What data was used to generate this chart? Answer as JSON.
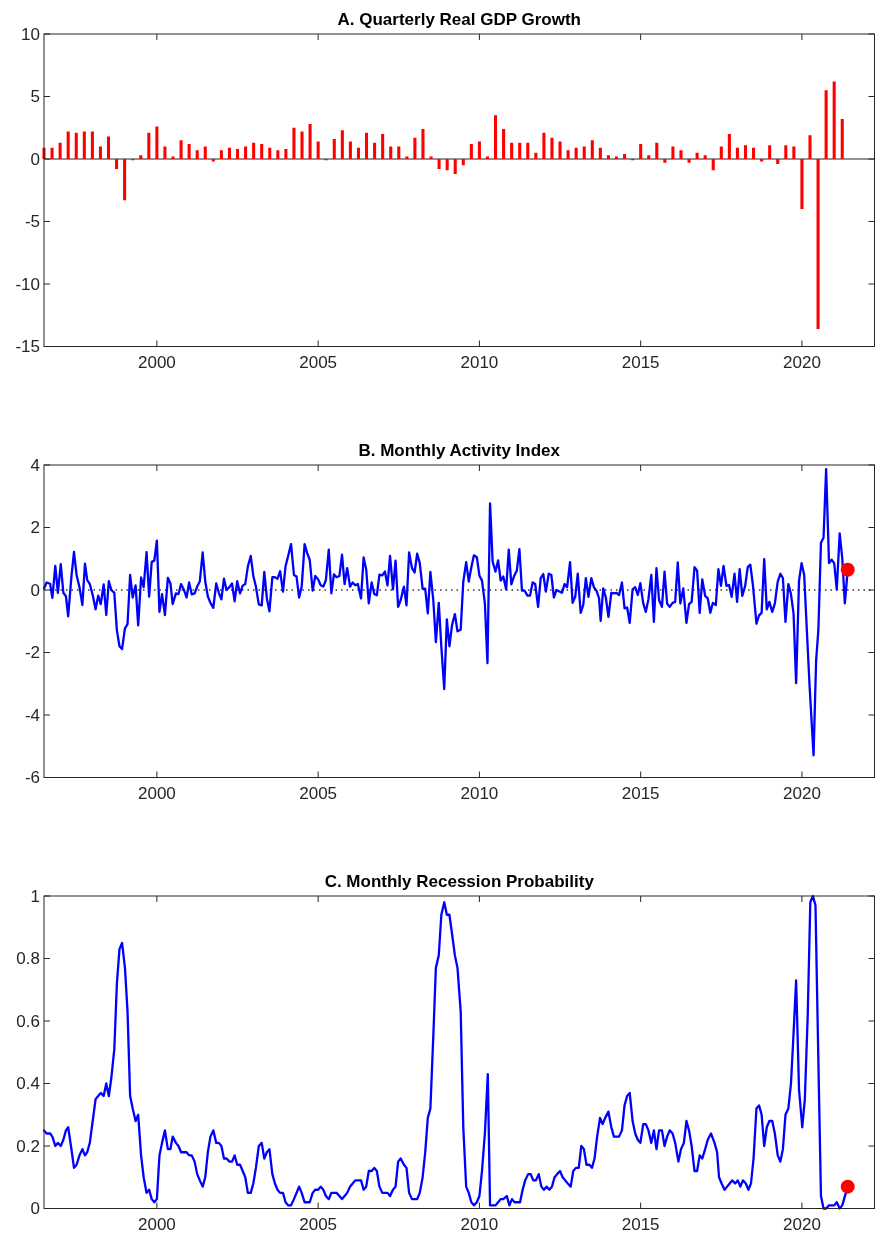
{
  "chart_data": [
    {
      "type": "bar",
      "title": "A. Quarterly Real GDP Growth",
      "xlim": [
        1996.5,
        2022.25
      ],
      "xticks": [
        2000,
        2005,
        2010,
        2015,
        2020
      ],
      "ylim": [
        -15,
        10
      ],
      "yticks": [
        -15,
        -10,
        -5,
        0,
        5,
        10
      ],
      "color": "#ff0000",
      "x": [
        1996.5,
        1996.75,
        1997,
        1997.25,
        1997.5,
        1997.75,
        1998,
        1998.25,
        1998.5,
        1998.75,
        1999,
        1999.25,
        1999.5,
        1999.75,
        2000,
        2000.25,
        2000.5,
        2000.75,
        2001,
        2001.25,
        2001.5,
        2001.75,
        2002,
        2002.25,
        2002.5,
        2002.75,
        2003,
        2003.25,
        2003.5,
        2003.75,
        2004,
        2004.25,
        2004.5,
        2004.75,
        2005,
        2005.25,
        2005.5,
        2005.75,
        2006,
        2006.25,
        2006.5,
        2006.75,
        2007,
        2007.25,
        2007.5,
        2007.75,
        2008,
        2008.25,
        2008.5,
        2008.75,
        2009,
        2009.25,
        2009.5,
        2009.75,
        2010,
        2010.25,
        2010.5,
        2010.75,
        2011,
        2011.25,
        2011.5,
        2011.75,
        2012,
        2012.25,
        2012.5,
        2012.75,
        2013,
        2013.25,
        2013.5,
        2013.75,
        2014,
        2014.25,
        2014.5,
        2014.75,
        2015,
        2015.25,
        2015.5,
        2015.75,
        2016,
        2016.25,
        2016.5,
        2016.75,
        2017,
        2017.25,
        2017.5,
        2017.75,
        2018,
        2018.25,
        2018.5,
        2018.75,
        2019,
        2019.25,
        2019.5,
        2019.75,
        2020,
        2020.25,
        2020.5,
        2020.75,
        2021,
        2021.25
      ],
      "values": [
        0.9,
        0.9,
        1.3,
        2.2,
        2.1,
        2.2,
        2.2,
        1,
        1.8,
        -0.8,
        -3.3,
        -0.1,
        0.3,
        2.1,
        2.6,
        1,
        0.2,
        1.5,
        1.2,
        0.7,
        1,
        -0.2,
        0.7,
        0.9,
        0.8,
        1,
        1.3,
        1.2,
        0.9,
        0.7,
        0.8,
        2.5,
        2.2,
        2.8,
        1.4,
        -0.1,
        1.6,
        2.3,
        1.4,
        0.9,
        2.1,
        1.3,
        2,
        1,
        1,
        0.2,
        1.7,
        2.4,
        0.2,
        -0.8,
        -0.9,
        -1.2,
        -0.5,
        1.2,
        1.4,
        0.2,
        3.5,
        2.4,
        1.3,
        1.3,
        1.3,
        0.5,
        2.1,
        1.7,
        1.4,
        0.7,
        0.9,
        1,
        1.5,
        0.9,
        0.3,
        0.2,
        0.4,
        -0.1,
        1.2,
        0.3,
        1.3,
        -0.3,
        1,
        0.7,
        -0.3,
        0.5,
        0.3,
        -0.9,
        1,
        2,
        0.9,
        1.1,
        0.9,
        -0.2,
        1.1,
        -0.4,
        1.1,
        1,
        -4,
        1.9,
        -13.6,
        5.5,
        6.2,
        3.2
      ]
    },
    {
      "type": "line",
      "title": "B. Monthly Activity Index",
      "xlim": [
        1996.5,
        2022.25
      ],
      "xticks": [
        2000,
        2005,
        2010,
        2015,
        2020
      ],
      "ylim": [
        -6,
        4
      ],
      "yticks": [
        -6,
        -4,
        -2,
        0,
        2,
        4
      ],
      "ref_lines": [
        {
          "axis": "y",
          "value": 0,
          "color": "#333333",
          "line_style": "dotted"
        }
      ],
      "series": [
        {
          "color": "#0000ff",
          "x": [
            1996.5,
            1996.58,
            1996.69,
            1996.76,
            1996.85,
            1996.93,
            1997.02,
            1997.1,
            1997.18,
            1997.25,
            1997.35,
            1997.43,
            1997.51,
            1997.6,
            1997.69,
            1997.77,
            1997.84,
            1997.92,
            1998.01,
            1998.1,
            1998.18,
            1998.26,
            1998.35,
            1998.43,
            1998.51,
            1998.59,
            1998.68,
            1998.76,
            1998.84,
            1998.92,
            1999.01,
            1999.09,
            1999.17,
            1999.25,
            1999.34,
            1999.42,
            1999.51,
            1999.59,
            1999.68,
            1999.76,
            1999.84,
            1999.92,
            2000,
            2000.08,
            2000.16,
            2000.25,
            2000.34,
            2000.42,
            2000.49,
            2000.59,
            2000.67,
            2000.75,
            2000.84,
            2000.92,
            2001,
            2001.08,
            2001.17,
            2001.25,
            2001.33,
            2001.42,
            2001.5,
            2001.58,
            2001.66,
            2001.75,
            2001.84,
            2001.92,
            2002,
            2002.08,
            2002.16,
            2002.25,
            2002.33,
            2002.41,
            2002.49,
            2002.58,
            2002.66,
            2002.74,
            2002.82,
            2002.91,
            2002.99,
            2003.07,
            2003.16,
            2003.25,
            2003.33,
            2003.41,
            2003.49,
            2003.58,
            2003.66,
            2003.74,
            2003.82,
            2003.91,
            2003.99,
            2004.07,
            2004.16,
            2004.25,
            2004.33,
            2004.41,
            2004.49,
            2004.58,
            2004.66,
            2004.74,
            2004.83,
            2004.91,
            2005,
            2005.08,
            2005.16,
            2005.24,
            2005.33,
            2005.41,
            2005.49,
            2005.57,
            2005.66,
            2005.74,
            2005.82,
            2005.9,
            2005.99,
            2006.07,
            2006.15,
            2006.23,
            2006.33,
            2006.41,
            2006.49,
            2006.57,
            2006.66,
            2006.74,
            2006.82,
            2006.9,
            2006.99,
            2007.07,
            2007.15,
            2007.23,
            2007.32,
            2007.4,
            2007.48,
            2007.56,
            2007.66,
            2007.74,
            2007.82,
            2007.91,
            2007.99,
            2008.07,
            2008.15,
            2008.24,
            2008.32,
            2008.4,
            2008.48,
            2008.57,
            2008.65,
            2008.74,
            2008.82,
            2008.91,
            2008.99,
            2009.07,
            2009.15,
            2009.24,
            2009.32,
            2009.42,
            2009.5,
            2009.59,
            2009.67,
            2009.75,
            2009.83,
            2009.92,
            2010,
            2010.08,
            2010.17,
            2010.25,
            2010.33,
            2010.41,
            2010.5,
            2010.58,
            2010.66,
            2010.74,
            2010.83,
            2010.91,
            2010.99,
            2011.07,
            2011.16,
            2011.24,
            2011.32,
            2011.4,
            2011.49,
            2011.57,
            2011.65,
            2011.73,
            2011.82,
            2011.9,
            2011.98,
            2012.06,
            2012.15,
            2012.23,
            2012.31,
            2012.39,
            2012.48,
            2012.56,
            2012.64,
            2012.72,
            2012.81,
            2012.89,
            2012.97,
            2013.05,
            2013.14,
            2013.22,
            2013.3,
            2013.38,
            2013.47,
            2013.55,
            2013.63,
            2013.71,
            2013.76,
            2013.84,
            2013.92,
            2014,
            2014.09,
            2014.17,
            2014.25,
            2014.33,
            2014.42,
            2014.5,
            2014.58,
            2014.66,
            2014.75,
            2014.83,
            2014.91,
            2014.99,
            2015.08,
            2015.16,
            2015.24,
            2015.33,
            2015.41,
            2015.49,
            2015.57,
            2015.66,
            2015.74,
            2015.82,
            2015.9,
            2015.99,
            2016.07,
            2016.15,
            2016.23,
            2016.32,
            2016.42,
            2016.5,
            2016.58,
            2016.67,
            2016.75,
            2016.83,
            2016.91,
            2017,
            2017.08,
            2017.16,
            2017.24,
            2017.33,
            2017.41,
            2017.49,
            2017.57,
            2017.66,
            2017.74,
            2017.82,
            2017.91,
            2017.99,
            2018.07,
            2018.15,
            2018.24,
            2018.32,
            2018.4,
            2018.48,
            2018.59,
            2018.67,
            2018.75,
            2018.83,
            2018.91,
            2018.99,
            2019.08,
            2019.16,
            2019.25,
            2019.33,
            2019.41,
            2019.49,
            2019.58,
            2019.66,
            2019.74,
            2019.82,
            2019.91,
            2019.99,
            2020.07,
            2020.15,
            2020.24,
            2020.36,
            2020.44,
            2020.51,
            2020.59,
            2020.67,
            2020.75,
            2020.84,
            2020.92,
            2021,
            2021.08,
            2021.17,
            2021.25,
            2021.33,
            2021.42
          ],
          "values": [
            0.05,
            0.24,
            0.2,
            -0.25,
            0.77,
            -0.09,
            0.83,
            -0.09,
            -0.2,
            -0.84,
            0.43,
            1.22,
            0.48,
            0.09,
            -0.48,
            0.84,
            0.32,
            0.19,
            -0.16,
            -0.62,
            -0.18,
            -0.45,
            0.18,
            -0.8,
            0.28,
            0,
            -0.09,
            -1.29,
            -1.8,
            -1.89,
            -1.23,
            -1.09,
            0.48,
            -0.24,
            0.15,
            -1.13,
            0.4,
            0.09,
            1.21,
            -0.21,
            0.9,
            0.94,
            1.58,
            -0.7,
            -0.13,
            -0.8,
            0.39,
            0.21,
            -0.45,
            -0.11,
            -0.13,
            0.19,
            0,
            -0.24,
            0.24,
            -0.14,
            -0.11,
            0.11,
            0.27,
            1.2,
            0.27,
            -0.21,
            -0.41,
            -0.57,
            0.21,
            -0.09,
            -0.3,
            0.36,
            0,
            0.09,
            0.21,
            -0.36,
            0.28,
            -0.11,
            0.14,
            0.19,
            0.75,
            1.09,
            0.45,
            0.11,
            -0.46,
            -0.49,
            0.58,
            -0.27,
            -0.68,
            0.41,
            0.41,
            0.36,
            0.6,
            -0.05,
            0.77,
            1.09,
            1.47,
            0.48,
            0.43,
            -0.24,
            0.11,
            1.47,
            1.18,
            0.96,
            -0.02,
            0.45,
            0.34,
            0.15,
            0.11,
            0.32,
            1.29,
            -0.11,
            0.5,
            0.41,
            0.45,
            1.13,
            0.19,
            0.7,
            0.11,
            0.24,
            0.15,
            0.19,
            -0.27,
            1.04,
            0.66,
            -0.43,
            0.24,
            -0.13,
            -0.17,
            0.49,
            0.47,
            0.59,
            0.15,
            1.09,
            0.02,
            0.94,
            -0.54,
            -0.32,
            0.11,
            -0.49,
            1.2,
            0.7,
            0.56,
            1.16,
            0.86,
            0.04,
            0.04,
            -0.75,
            0.58,
            -0.32,
            -1.67,
            -0.41,
            -1.82,
            -3.17,
            -0.94,
            -1.8,
            -1.13,
            -0.77,
            -1.32,
            -1.27,
            0.27,
            0.89,
            0.27,
            0.73,
            1.11,
            1.05,
            0.46,
            0.3,
            -0.43,
            -2.34,
            2.77,
            0.91,
            0.59,
            0.95,
            0.3,
            0.43,
            0.02,
            1.29,
            0.18,
            0.43,
            0.62,
            1.31,
            -0.02,
            -0.02,
            -0.18,
            -0.18,
            0.24,
            0.19,
            -0.54,
            0.38,
            0.51,
            -0.05,
            0.52,
            0.48,
            -0.24,
            0,
            -0.05,
            -0.09,
            0.19,
            0.09,
            0.89,
            -0.41,
            -0.22,
            0.52,
            -0.73,
            -0.48,
            0.38,
            -0.22,
            0.38,
            0.09,
            -0.02,
            -0.27,
            -0.99,
            0.05,
            -0.24,
            -0.86,
            -0.09,
            -0.11,
            -0.09,
            -0.16,
            0.24,
            -0.59,
            -0.56,
            -1.05,
            0.02,
            0.09,
            -0.16,
            0.22,
            -0.43,
            -0.7,
            -0.3,
            0.48,
            -1.02,
            0.7,
            -0.32,
            -0.54,
            0.59,
            -0.43,
            -0.54,
            -0.41,
            -0.38,
            0.88,
            -0.43,
            0.05,
            -1.05,
            -0.45,
            -0.38,
            0.73,
            0.62,
            -0.73,
            0.34,
            -0.19,
            -0.27,
            -0.73,
            -0.41,
            -0.48,
            0.67,
            0.13,
            0.77,
            0.13,
            0.16,
            -0.22,
            0.52,
            -0.38,
            0.67,
            -0.19,
            0.13,
            0.73,
            0.81,
            0.16,
            -1.08,
            -0.81,
            -0.73,
            0.99,
            -0.62,
            -0.38,
            -0.7,
            -0.43,
            0.27,
            0.52,
            0.38,
            -1.02,
            0.19,
            -0.13,
            -0.75,
            -2.98,
            0.3,
            0.86,
            0.48,
            -1.24,
            -3.12,
            -5.29,
            -2.26,
            -1.27,
            1.51,
            1.67,
            3.87,
            0.86,
            0.97,
            0.86,
            0.02,
            1.81,
            1.02,
            -0.43,
            0.65
          ]
        },
        {
          "type": "scatter",
          "color": "#ff0000",
          "marker": "circle",
          "x": [
            2021.42
          ],
          "values": [
            0.65
          ]
        }
      ]
    },
    {
      "type": "line",
      "title": "C. Monthly Recession Probability",
      "xlim": [
        1996.5,
        2022.25
      ],
      "xticks": [
        2000,
        2005,
        2010,
        2015,
        2020
      ],
      "ylim": [
        0,
        1
      ],
      "yticks": [
        0,
        0.2,
        0.4,
        0.6,
        0.8,
        1
      ],
      "series": [
        {
          "color": "#0000ff",
          "x": [
            1996.5,
            1996.58,
            1996.69,
            1996.76,
            1996.85,
            1996.93,
            1997.02,
            1997.1,
            1997.18,
            1997.25,
            1997.35,
            1997.43,
            1997.51,
            1997.6,
            1997.69,
            1997.77,
            1997.84,
            1997.92,
            1998.01,
            1998.1,
            1998.18,
            1998.26,
            1998.35,
            1998.43,
            1998.51,
            1998.59,
            1998.68,
            1998.76,
            1998.84,
            1998.92,
            1999.01,
            1999.09,
            1999.17,
            1999.25,
            1999.34,
            1999.42,
            1999.51,
            1999.59,
            1999.68,
            1999.76,
            1999.84,
            1999.92,
            2000,
            2000.08,
            2000.16,
            2000.25,
            2000.34,
            2000.42,
            2000.49,
            2000.59,
            2000.67,
            2000.75,
            2000.84,
            2000.92,
            2001,
            2001.08,
            2001.17,
            2001.25,
            2001.33,
            2001.42,
            2001.5,
            2001.58,
            2001.66,
            2001.75,
            2001.84,
            2001.92,
            2002,
            2002.08,
            2002.16,
            2002.25,
            2002.33,
            2002.41,
            2002.49,
            2002.58,
            2002.66,
            2002.74,
            2002.82,
            2002.91,
            2002.99,
            2003.07,
            2003.16,
            2003.25,
            2003.33,
            2003.41,
            2003.49,
            2003.58,
            2003.66,
            2003.74,
            2003.82,
            2003.91,
            2003.99,
            2004.07,
            2004.16,
            2004.25,
            2004.33,
            2004.41,
            2004.49,
            2004.58,
            2004.66,
            2004.74,
            2004.83,
            2004.91,
            2005,
            2005.08,
            2005.16,
            2005.24,
            2005.33,
            2005.41,
            2005.49,
            2005.57,
            2005.66,
            2005.74,
            2005.82,
            2005.9,
            2005.99,
            2006.07,
            2006.15,
            2006.23,
            2006.33,
            2006.41,
            2006.49,
            2006.57,
            2006.66,
            2006.74,
            2006.82,
            2006.9,
            2006.99,
            2007.07,
            2007.15,
            2007.23,
            2007.32,
            2007.4,
            2007.48,
            2007.56,
            2007.66,
            2007.74,
            2007.82,
            2007.91,
            2007.99,
            2008.07,
            2008.15,
            2008.24,
            2008.32,
            2008.4,
            2008.48,
            2008.57,
            2008.65,
            2008.74,
            2008.82,
            2008.91,
            2008.99,
            2009.07,
            2009.15,
            2009.24,
            2009.32,
            2009.42,
            2009.5,
            2009.59,
            2009.67,
            2009.75,
            2009.83,
            2009.92,
            2010,
            2010.08,
            2010.17,
            2010.26,
            2010.33,
            2010.41,
            2010.5,
            2010.58,
            2010.66,
            2010.74,
            2010.85,
            2010.93,
            2011.01,
            2011.09,
            2011.18,
            2011.26,
            2011.34,
            2011.42,
            2011.51,
            2011.59,
            2011.67,
            2011.75,
            2011.84,
            2011.92,
            2012,
            2012.08,
            2012.17,
            2012.25,
            2012.33,
            2012.41,
            2012.5,
            2012.58,
            2012.66,
            2012.74,
            2012.83,
            2012.91,
            2012.99,
            2013.08,
            2013.16,
            2013.24,
            2013.32,
            2013.41,
            2013.49,
            2013.57,
            2013.65,
            2013.74,
            2013.82,
            2013.9,
            2014,
            2014.09,
            2014.17,
            2014.25,
            2014.33,
            2014.42,
            2014.5,
            2014.58,
            2014.66,
            2014.75,
            2014.83,
            2014.91,
            2014.99,
            2015.08,
            2015.16,
            2015.24,
            2015.33,
            2015.41,
            2015.49,
            2015.57,
            2015.66,
            2015.74,
            2015.82,
            2015.9,
            2015.99,
            2016.07,
            2016.17,
            2016.25,
            2016.34,
            2016.42,
            2016.5,
            2016.58,
            2016.67,
            2016.75,
            2016.83,
            2016.91,
            2017,
            2017.08,
            2017.18,
            2017.29,
            2017.37,
            2017.43,
            2017.51,
            2017.6,
            2017.68,
            2017.76,
            2017.84,
            2017.93,
            2018.01,
            2018.09,
            2018.17,
            2018.26,
            2018.34,
            2018.42,
            2018.5,
            2018.59,
            2018.67,
            2018.75,
            2018.83,
            2018.91,
            2018.99,
            2019.08,
            2019.16,
            2019.25,
            2019.33,
            2019.41,
            2019.49,
            2019.58,
            2019.66,
            2019.74,
            2019.82,
            2019.91,
            2020.01,
            2020.09,
            2020.18,
            2020.26,
            2020.34,
            2020.42,
            2020.51,
            2020.59,
            2020.67,
            2020.75,
            2020.84,
            2020.92,
            2021,
            2021.08,
            2021.17,
            2021.25,
            2021.42
          ],
          "values": [
            0.25,
            0.24,
            0.24,
            0.23,
            0.2,
            0.21,
            0.2,
            0.22,
            0.25,
            0.26,
            0.19,
            0.13,
            0.14,
            0.17,
            0.19,
            0.17,
            0.18,
            0.21,
            0.28,
            0.35,
            0.36,
            0.37,
            0.36,
            0.4,
            0.36,
            0.42,
            0.51,
            0.72,
            0.83,
            0.85,
            0.77,
            0.63,
            0.36,
            0.32,
            0.28,
            0.3,
            0.17,
            0.1,
            0.05,
            0.06,
            0.03,
            0.02,
            0.03,
            0.17,
            0.21,
            0.25,
            0.19,
            0.19,
            0.23,
            0.21,
            0.2,
            0.18,
            0.18,
            0.18,
            0.17,
            0.17,
            0.15,
            0.11,
            0.09,
            0.07,
            0.1,
            0.18,
            0.23,
            0.25,
            0.21,
            0.21,
            0.2,
            0.16,
            0.16,
            0.15,
            0.15,
            0.17,
            0.14,
            0.14,
            0.12,
            0.1,
            0.05,
            0.05,
            0.08,
            0.13,
            0.2,
            0.21,
            0.16,
            0.18,
            0.19,
            0.11,
            0.08,
            0.06,
            0.05,
            0.05,
            0.02,
            0.01,
            0.01,
            0.03,
            0.05,
            0.07,
            0.05,
            0.02,
            0.02,
            0.02,
            0.05,
            0.06,
            0.06,
            0.07,
            0.06,
            0.04,
            0.03,
            0.05,
            0.05,
            0.05,
            0.04,
            0.03,
            0.04,
            0.05,
            0.07,
            0.08,
            0.09,
            0.09,
            0.09,
            0.06,
            0.07,
            0.12,
            0.12,
            0.13,
            0.12,
            0.07,
            0.05,
            0.05,
            0.05,
            0.04,
            0.06,
            0.07,
            0.15,
            0.16,
            0.14,
            0.13,
            0.05,
            0.03,
            0.03,
            0.03,
            0.05,
            0.1,
            0.18,
            0.29,
            0.32,
            0.55,
            0.77,
            0.81,
            0.94,
            0.98,
            0.94,
            0.94,
            0.88,
            0.81,
            0.77,
            0.63,
            0.26,
            0.07,
            0.05,
            0.02,
            0.01,
            0.02,
            0.04,
            0.12,
            0.24,
            0.43,
            0.01,
            0.01,
            0.01,
            0.02,
            0.03,
            0.03,
            0.04,
            0.01,
            0.03,
            0.02,
            0.02,
            0.02,
            0.06,
            0.09,
            0.11,
            0.11,
            0.09,
            0.09,
            0.11,
            0.07,
            0.06,
            0.07,
            0.06,
            0.07,
            0.1,
            0.11,
            0.12,
            0.1,
            0.09,
            0.08,
            0.07,
            0.12,
            0.13,
            0.13,
            0.2,
            0.19,
            0.14,
            0.14,
            0.13,
            0.16,
            0.23,
            0.29,
            0.27,
            0.29,
            0.31,
            0.26,
            0.23,
            0.23,
            0.23,
            0.25,
            0.33,
            0.36,
            0.37,
            0.28,
            0.24,
            0.22,
            0.21,
            0.27,
            0.27,
            0.25,
            0.21,
            0.25,
            0.19,
            0.25,
            0.25,
            0.2,
            0.23,
            0.25,
            0.24,
            0.21,
            0.15,
            0.19,
            0.21,
            0.28,
            0.25,
            0.2,
            0.12,
            0.12,
            0.17,
            0.16,
            0.19,
            0.22,
            0.24,
            0.21,
            0.18,
            0.1,
            0.08,
            0.06,
            0.07,
            0.08,
            0.09,
            0.08,
            0.09,
            0.07,
            0.09,
            0.08,
            0.06,
            0.08,
            0.16,
            0.32,
            0.33,
            0.3,
            0.2,
            0.26,
            0.28,
            0.28,
            0.24,
            0.17,
            0.15,
            0.19,
            0.3,
            0.32,
            0.4,
            0.56,
            0.73,
            0.38,
            0.26,
            0.35,
            0.62,
            0.98,
            1,
            0.97,
            0.47,
            0.04,
            0,
            0,
            0.01,
            0.01,
            0.01,
            0.02,
            0,
            0.01,
            0.07
          ]
        },
        {
          "type": "scatter",
          "color": "#ff0000",
          "marker": "circle",
          "x": [
            2021.42
          ],
          "values": [
            0.07
          ]
        }
      ]
    }
  ]
}
